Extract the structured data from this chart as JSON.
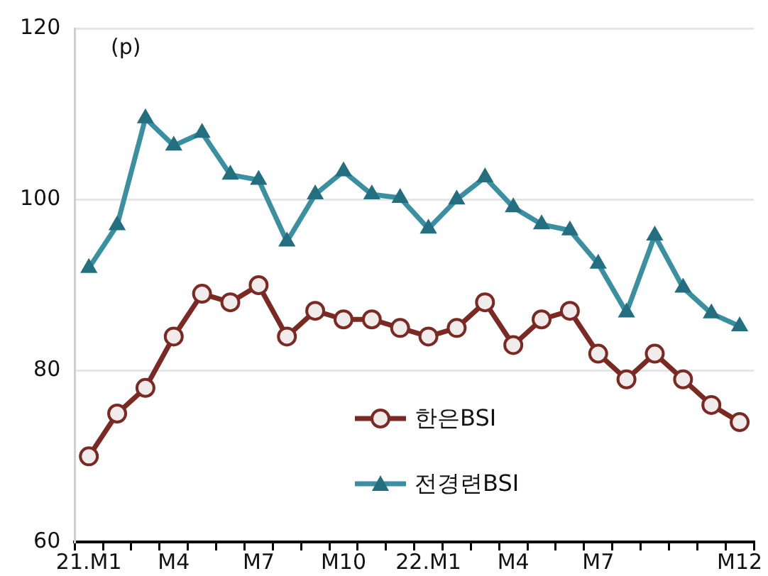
{
  "chart_data": {
    "type": "line",
    "categories": [
      "21.M1",
      null,
      null,
      "M4",
      null,
      null,
      "M7",
      null,
      null,
      "M10",
      null,
      null,
      "22.M1",
      null,
      null,
      "M4",
      null,
      null,
      "M7",
      null,
      null,
      null,
      null,
      "M12"
    ],
    "series": [
      {
        "name": "한은BSI",
        "color": "#7b2a23",
        "marker": "circle",
        "values": [
          70,
          75,
          78,
          84,
          89,
          88,
          90,
          84,
          87,
          86,
          86,
          85,
          84,
          85,
          88,
          83,
          86,
          87,
          82,
          79,
          82,
          79,
          76,
          74
        ]
      },
      {
        "name": "전경련BSI",
        "color": "#3a8fa0",
        "marker": "triangle",
        "values": [
          92,
          97,
          109.5,
          106.3,
          107.8,
          102.9,
          102.3,
          95.1,
          100.6,
          103.3,
          100.6,
          100.2,
          96.6,
          100,
          102.6,
          99.1,
          97.1,
          96.4,
          92.5,
          86.8,
          95.8,
          89.7,
          86.7,
          85.2
        ]
      }
    ],
    "ylim": [
      60,
      120
    ],
    "yticks": [
      60,
      80,
      100,
      120
    ],
    "grid": "y",
    "legend": "bottom",
    "annotations": [
      "(p)"
    ]
  }
}
